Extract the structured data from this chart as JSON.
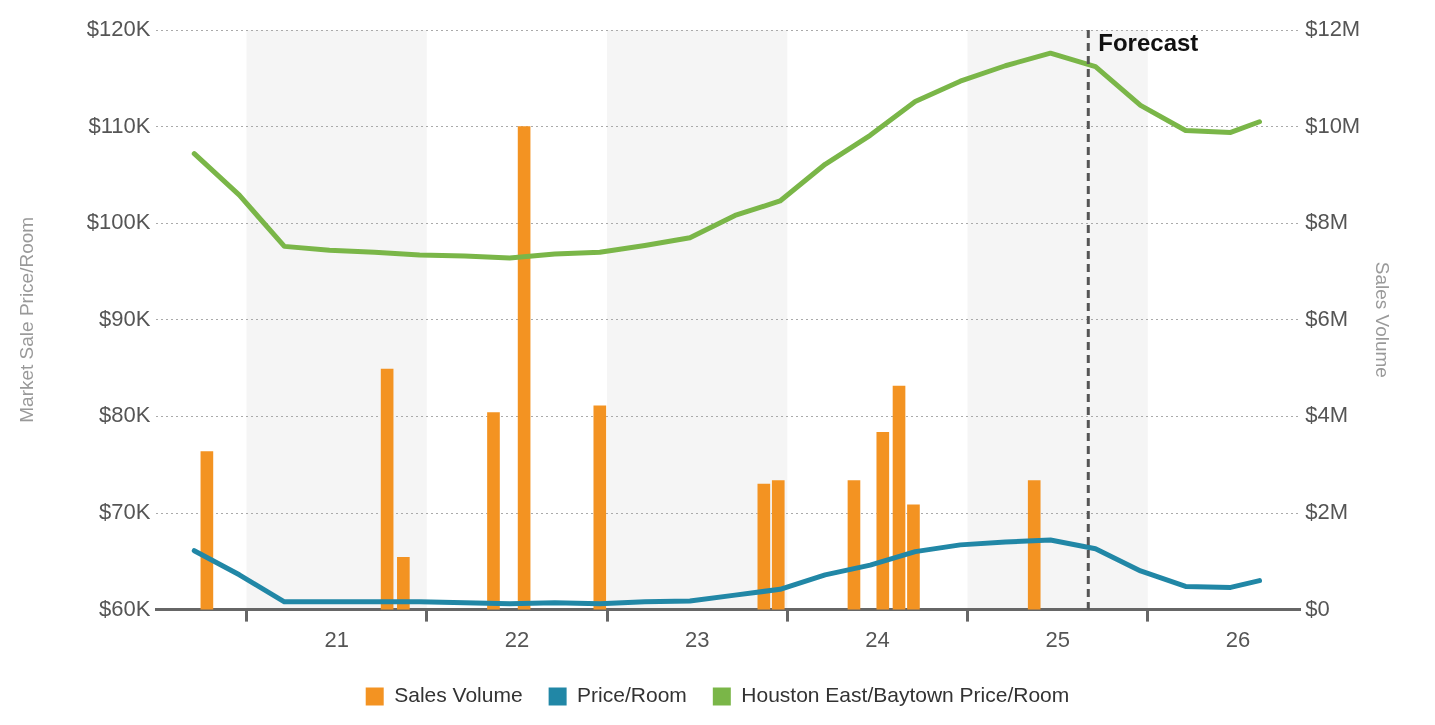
{
  "chart_data": {
    "type": "line",
    "ylabel": "Market Sale Price/Room",
    "y2label": "Sales Volume",
    "xlim": [
      20.0,
      26.34
    ],
    "xticks": [
      {
        "value": 20.5,
        "label": null
      },
      21,
      {
        "value": 21.5,
        "label": null
      },
      22,
      {
        "value": 22.5,
        "label": null
      },
      23,
      {
        "value": 23.5,
        "label": null
      },
      24,
      {
        "value": 24.5,
        "label": null
      },
      25,
      {
        "value": 25.5,
        "label": null
      },
      26
    ],
    "ylim": [
      60,
      120
    ],
    "yticks": [
      {
        "value": 60,
        "label": "$60K"
      },
      {
        "value": 70,
        "label": "$70K"
      },
      {
        "value": 80,
        "label": "$80K"
      },
      {
        "value": 90,
        "label": "$90K"
      },
      {
        "value": 100,
        "label": "$100K"
      },
      {
        "value": 110,
        "label": "$110K"
      },
      {
        "value": 120,
        "label": "$120K"
      }
    ],
    "y2lim": [
      0,
      12
    ],
    "y2ticks": [
      {
        "value": 0,
        "label": "$0"
      },
      {
        "value": 2,
        "label": "$2M"
      },
      {
        "value": 4,
        "label": "$4M"
      },
      {
        "value": 6,
        "label": "$6M"
      },
      {
        "value": 8,
        "label": "$8M"
      },
      {
        "value": 10,
        "label": "$10M"
      },
      {
        "value": 12,
        "label": "$12M"
      }
    ],
    "grid": "y",
    "legend": "bottom",
    "marker": "none",
    "line_style": "solid",
    "series": [
      {
        "name": "Sales Volume",
        "type": "bar",
        "axis": "y2",
        "color": "#f39322",
        "x": [
          20.28,
          21.28,
          21.37,
          21.87,
          22.04,
          22.46,
          23.37,
          23.45,
          23.87,
          24.03,
          24.12,
          24.2,
          24.87
        ],
        "values": [
          3.27,
          4.98,
          1.08,
          4.08,
          10.0,
          4.22,
          2.6,
          2.67,
          2.67,
          3.67,
          4.63,
          2.17,
          2.67
        ]
      },
      {
        "name": "Price/Room",
        "color": "#2187a6",
        "x": [
          20.21,
          20.46,
          20.71,
          20.96,
          21.21,
          21.46,
          21.71,
          21.96,
          22.21,
          22.46,
          22.71,
          22.96,
          23.21,
          23.46,
          23.71,
          23.96,
          24.21,
          24.46,
          24.71,
          24.96,
          25.21,
          25.46,
          25.71,
          25.96,
          26.12
        ],
        "values": [
          66.1,
          63.6,
          60.8,
          60.8,
          60.8,
          60.8,
          60.7,
          60.6,
          60.7,
          60.6,
          60.8,
          60.9,
          61.5,
          62.1,
          63.6,
          64.6,
          66.0,
          66.7,
          67.0,
          67.2,
          66.3,
          64.0,
          62.4,
          62.3,
          63.0
        ]
      },
      {
        "name": "Houston East/Baytown Price/Room",
        "color": "#7ab648",
        "x": [
          20.21,
          20.46,
          20.71,
          20.96,
          21.21,
          21.46,
          21.71,
          21.96,
          22.21,
          22.46,
          22.71,
          22.96,
          23.21,
          23.46,
          23.71,
          23.96,
          24.21,
          24.46,
          24.71,
          24.96,
          25.21,
          25.46,
          25.71,
          25.96,
          26.12
        ],
        "values": [
          107.2,
          102.9,
          97.6,
          97.2,
          97.0,
          96.7,
          96.6,
          96.4,
          96.8,
          97.0,
          97.7,
          98.5,
          100.8,
          102.3,
          106.1,
          109.1,
          112.6,
          114.7,
          116.3,
          117.6,
          116.2,
          112.2,
          109.6,
          109.4,
          110.5
        ]
      }
    ],
    "bands": [
      {
        "axis": "x",
        "from": 20.5,
        "to": 21.5,
        "color": "#f5f5f5"
      },
      {
        "axis": "x",
        "from": 22.5,
        "to": 23.5,
        "color": "#f5f5f5"
      },
      {
        "axis": "x",
        "from": 24.5,
        "to": 25.5,
        "color": "#f5f5f5"
      }
    ],
    "ref_lines": [
      {
        "axis": "x",
        "value": 25.17,
        "label": "Forecast",
        "color": "#555555",
        "line_style": "dashed"
      }
    ]
  }
}
